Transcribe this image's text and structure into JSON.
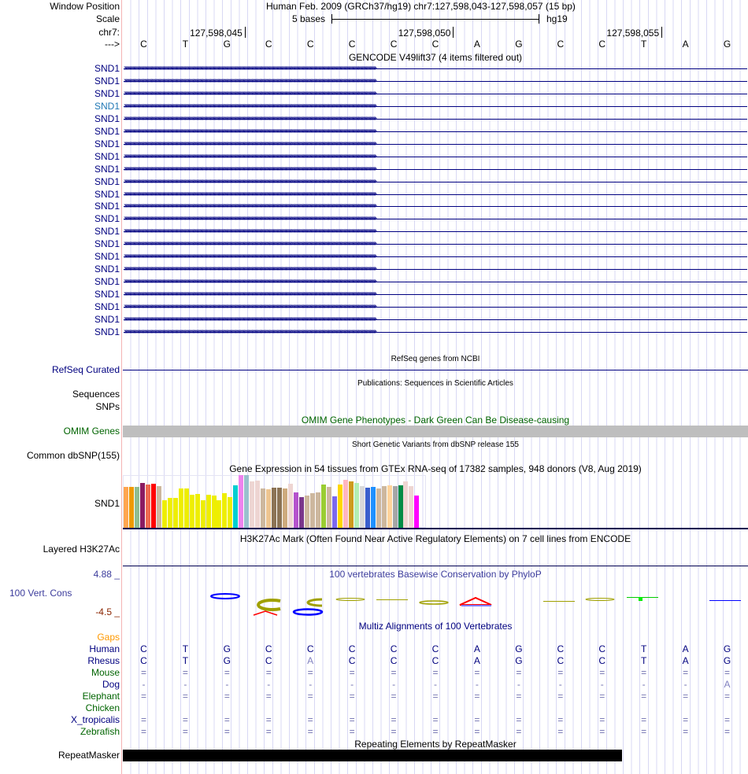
{
  "header": {
    "window_position_label": "Window Position",
    "window_position_text": "Human Feb. 2009 (GRCh37/hg19)   chr7:127,598,043-127,598,057 (15 bp)",
    "scale_label": "Scale",
    "scale_text": "5 bases",
    "scale_assembly": "hg19",
    "chrom_label": "chr7:",
    "ticks": [
      "127,598,045",
      "127,598,050",
      "127,598,055"
    ],
    "strand_label": "--->",
    "bases": [
      "C",
      "T",
      "G",
      "C",
      "C",
      "C",
      "C",
      "C",
      "A",
      "G",
      "C",
      "C",
      "T",
      "A",
      "G"
    ]
  },
  "gencode": {
    "title": "GENCODE V49lift37 (4 items filtered out)",
    "genes": [
      "SND1",
      "SND1",
      "SND1",
      "SND1",
      "SND1",
      "SND1",
      "SND1",
      "SND1",
      "SND1",
      "SND1",
      "SND1",
      "SND1",
      "SND1",
      "SND1",
      "SND1",
      "SND1",
      "SND1",
      "SND1",
      "SND1",
      "SND1",
      "SND1",
      "SND1"
    ],
    "highlight_index": 3,
    "color": "#000080",
    "highlight_color": "#1f77b4"
  },
  "refseq": {
    "title": "RefSeq genes from NCBI",
    "label": "RefSeq Curated"
  },
  "publications": {
    "title": "Publications: Sequences in Scientific Articles",
    "label1": "Sequences",
    "label2": "SNPs"
  },
  "omim": {
    "title": "OMIM Gene Phenotypes - Dark Green Can Be Disease-causing",
    "label": "OMIM Genes"
  },
  "dbsnp": {
    "title": "Short Genetic Variants from dbSNP release 155",
    "label": "Common dbSNP(155)"
  },
  "gtex": {
    "title": "Gene Expression in 54 tissues from GTEx RNA-seq of 17382 samples, 948 donors (V8, Aug 2019)",
    "label": "SND1",
    "relative_levels": [
      0.78,
      0.78,
      0.78,
      0.855,
      0.825,
      0.84,
      0.79,
      0.525,
      0.57,
      0.57,
      0.75,
      0.75,
      0.63,
      0.645,
      0.525,
      0.63,
      0.615,
      0.525,
      0.66,
      0.585,
      0.81,
      1.0,
      1.0,
      0.885,
      0.9,
      0.75,
      0.735,
      0.755,
      0.765,
      0.75,
      0.84,
      0.675,
      0.585,
      0.615,
      0.66,
      0.675,
      0.825,
      0.78,
      0.6,
      0.825,
      0.915,
      0.885,
      0.855,
      0.795,
      0.765,
      0.78,
      0.75,
      0.795,
      0.81,
      0.795,
      0.81,
      0.885,
      0.795,
      0.615
    ],
    "colors": [
      "#FFA54F",
      "#EE9A00",
      "#8FBC8F",
      "#8B1C62",
      "#EE6A50",
      "#FF0000",
      "#CDB79E",
      "#EEEE00",
      "#EEEE00",
      "#EEEE00",
      "#EEEE00",
      "#EEEE00",
      "#EEEE00",
      "#EEEE00",
      "#EEEE00",
      "#EEEE00",
      "#EEEE00",
      "#EEEE00",
      "#EEEE00",
      "#EEEE00",
      "#00CED1",
      "#EE82EE",
      "#9AC0CD",
      "#EED5D2",
      "#EED5D2",
      "#CDB79E",
      "#EEC591",
      "#8B7355",
      "#8B7355",
      "#CDAA7D",
      "#EED5D2",
      "#B452CD",
      "#7A378B",
      "#CDB79E",
      "#CDB79E",
      "#CDB79E",
      "#9ACD32",
      "#CDB79E",
      "#7B68EE",
      "#FFD700",
      "#FFB6C1",
      "#CD9B1D",
      "#B4EEB4",
      "#D9D9D9",
      "#3A5FCD",
      "#1E90FF",
      "#CDB79E",
      "#CDB79E",
      "#FFD39B",
      "#A6A6A6",
      "#008B45",
      "#EED5D2",
      "#EED5D2",
      "#FF00FF"
    ]
  },
  "h3k27ac": {
    "title": "H3K27Ac Mark (Often Found Near Active Regulatory Elements) on 7 cell lines from ENCODE",
    "label": "Layered H3K27Ac"
  },
  "phylop": {
    "title": "100 vertebrates Basewise Conservation by PhyloP",
    "label": "100 Vert. Cons",
    "max": "4.88 _",
    "min": "-4.5 _"
  },
  "multiz": {
    "title": "Multiz Alignments of 100 Vertebrates",
    "gaps_label": "Gaps",
    "species": [
      {
        "name": "Human",
        "color": "#000080",
        "row": [
          "C",
          "T",
          "G",
          "C",
          "C",
          "C",
          "C",
          "C",
          "A",
          "G",
          "C",
          "C",
          "T",
          "A",
          "G"
        ]
      },
      {
        "name": "Rhesus",
        "color": "#000080",
        "row": [
          "C",
          "T",
          "G",
          "C",
          "A",
          "C",
          "C",
          "C",
          "A",
          "G",
          "C",
          "C",
          "T",
          "A",
          "G"
        ]
      },
      {
        "name": "Mouse",
        "color": "#006400",
        "row": [
          "=",
          "=",
          "=",
          "=",
          "=",
          "=",
          "=",
          "=",
          "=",
          "=",
          "=",
          "=",
          "=",
          "=",
          "="
        ]
      },
      {
        "name": "Dog",
        "color": "#000080",
        "row": [
          "-",
          "-",
          "-",
          "-",
          "-",
          "-",
          "-",
          "-",
          "-",
          "-",
          "-",
          "-",
          "-",
          "-",
          "A"
        ]
      },
      {
        "name": "Elephant",
        "color": "#006400",
        "row": [
          "=",
          "=",
          "=",
          "=",
          "=",
          "=",
          "=",
          "=",
          "=",
          "=",
          "=",
          "=",
          "=",
          "=",
          "="
        ]
      },
      {
        "name": "Chicken",
        "color": "#006400",
        "row": [
          "",
          "",
          "",
          "",
          "",
          "",
          "",
          "",
          "",
          "",
          "",
          "",
          "",
          "",
          ""
        ]
      },
      {
        "name": "X_tropicalis",
        "color": "#000080",
        "row": [
          "=",
          "=",
          "=",
          "=",
          "=",
          "=",
          "=",
          "=",
          "=",
          "=",
          "=",
          "=",
          "=",
          "=",
          "="
        ]
      },
      {
        "name": "Zebrafish",
        "color": "#006400",
        "row": [
          "=",
          "=",
          "=",
          "=",
          "=",
          "=",
          "=",
          "=",
          "=",
          "=",
          "=",
          "=",
          "=",
          "=",
          "="
        ]
      }
    ],
    "rhesus_mismatch_index": 4
  },
  "repeatmasker": {
    "title": "Repeating Elements by RepeatMasker",
    "label": "RepeatMasker"
  }
}
